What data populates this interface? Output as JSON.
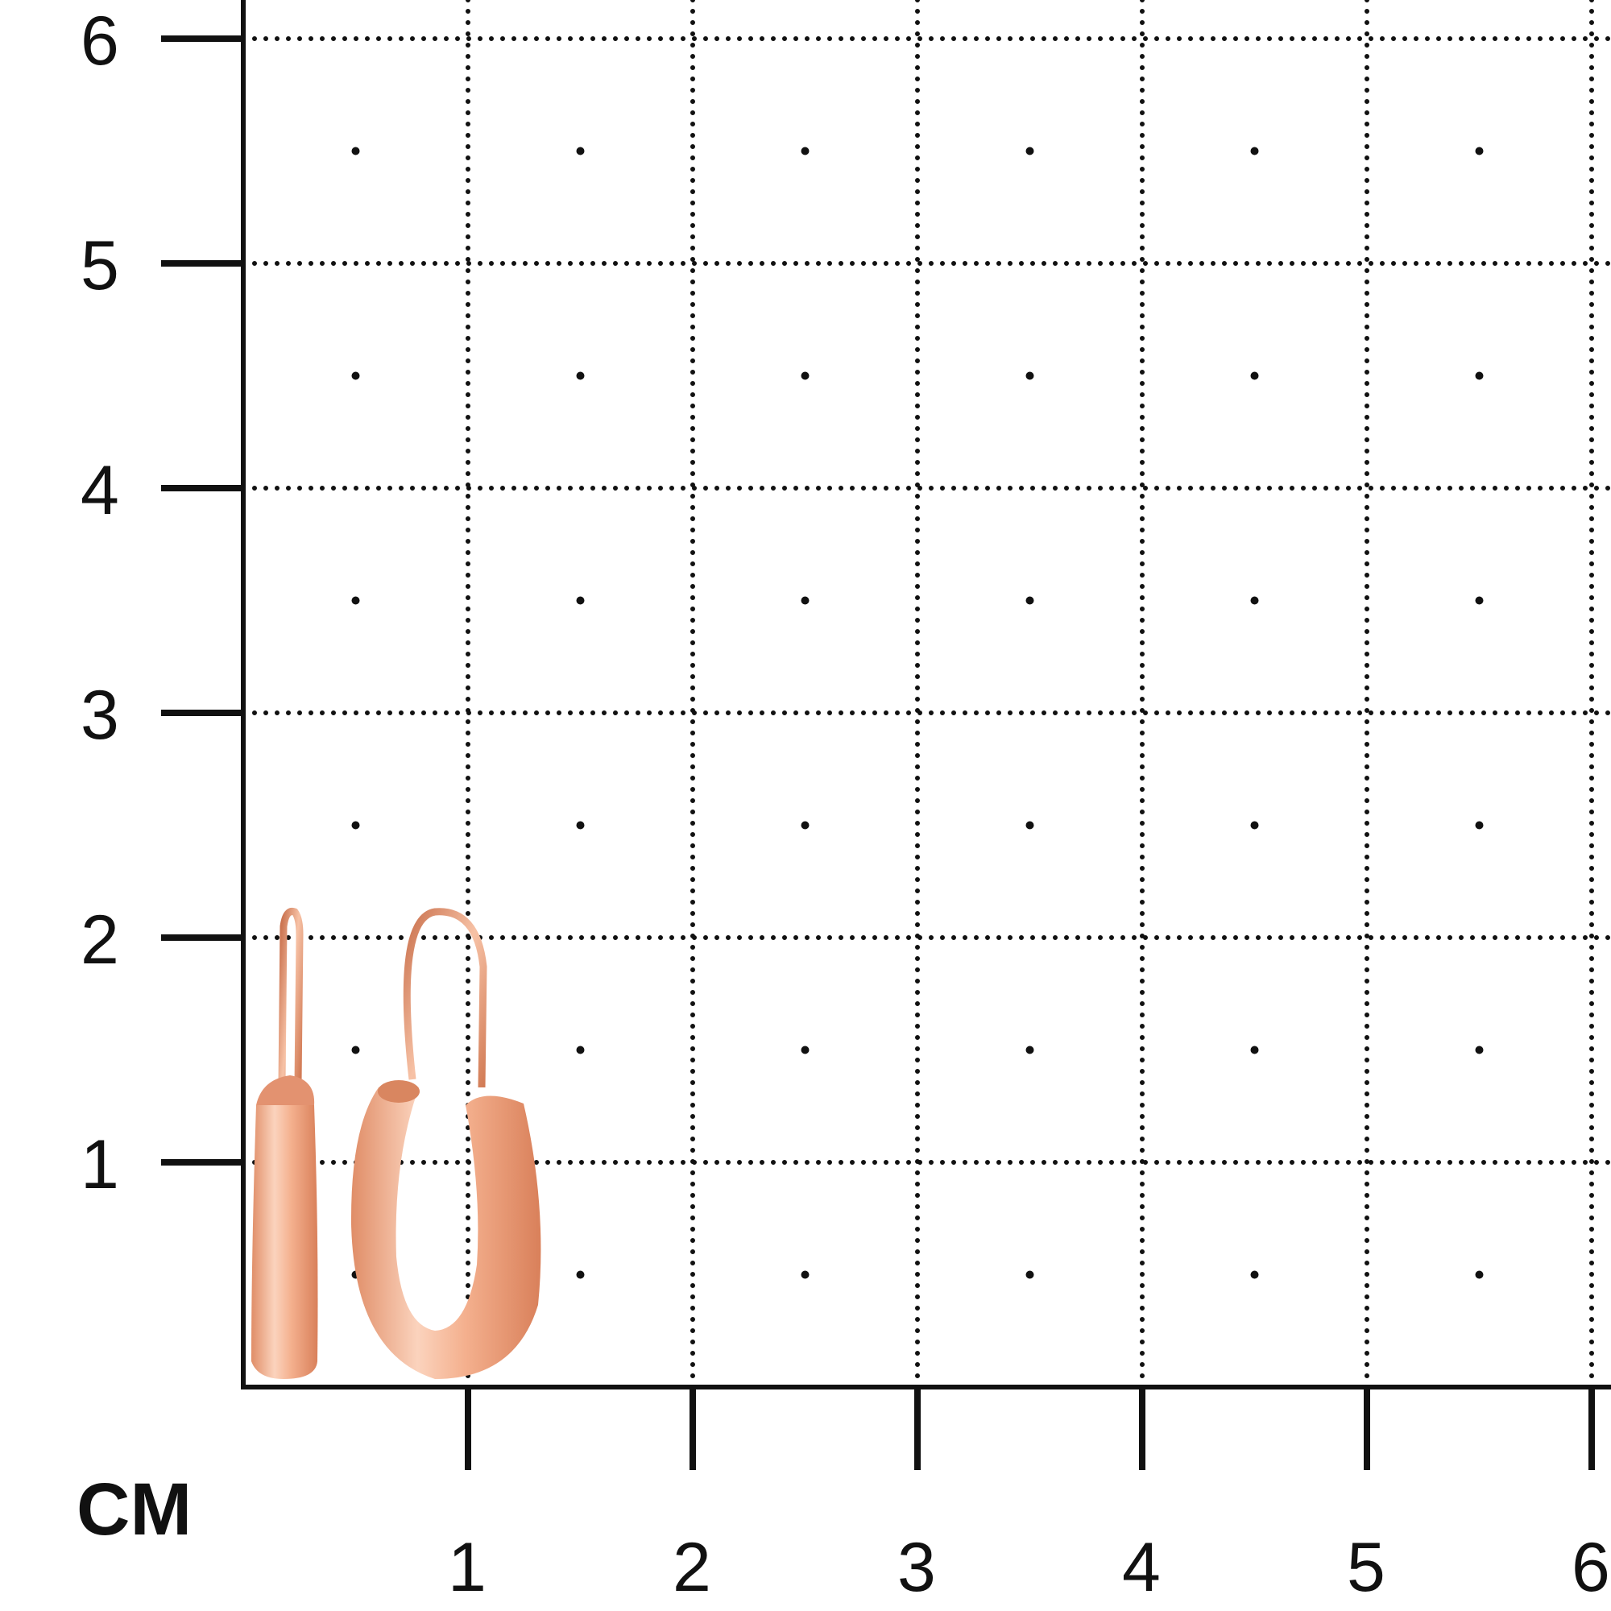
{
  "ruler": {
    "unit": "CM",
    "y_labels": [
      "1",
      "2",
      "3",
      "4",
      "5",
      "6"
    ],
    "x_labels": [
      "1",
      "2",
      "3",
      "4",
      "5",
      "6"
    ],
    "grid": "dotted",
    "line_color": "#111111"
  },
  "product": {
    "item": "hoop earrings",
    "metal_color": "#e9a27f"
  }
}
